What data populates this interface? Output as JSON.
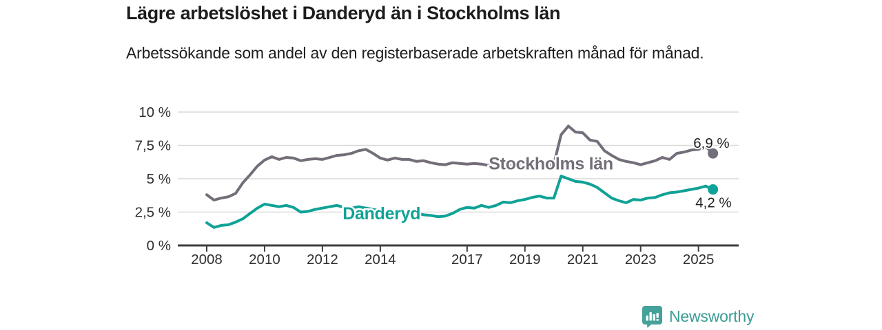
{
  "branding": {
    "label": "Newsworthy",
    "color": "#3b9c94",
    "icon": "newsworthy-speech-bubble-bar-chart-icon"
  },
  "chart_data": {
    "type": "line",
    "title": "Lägre arbetslöshet i Danderyd än i Stockholms län",
    "subtitle": "Arbetssökande som andel av den registerbaserade arbetskraften månad för månad.",
    "unit": "%",
    "grid": true,
    "legend_position": "inline-labels-on-lines",
    "x_axis": {
      "range": [
        2006.9,
        2026.4
      ],
      "ticks": [
        2008,
        2010,
        2012,
        2014,
        2017,
        2019,
        2021,
        2023,
        2025
      ]
    },
    "y_axis": {
      "range": [
        0,
        10
      ],
      "ticks": [
        {
          "value": 0,
          "label": "0 %"
        },
        {
          "value": 2.5,
          "label": "2,5 %"
        },
        {
          "value": 5,
          "label": "5 %"
        },
        {
          "value": 7.5,
          "label": "7,5 %"
        },
        {
          "value": 10,
          "label": "10 %"
        }
      ]
    },
    "x_start": 2008.0,
    "x_step": 0.25,
    "series": [
      {
        "name": "Stockholms län",
        "color": "#736e79",
        "end_value": 6.9,
        "end_label": "6,9 %",
        "label_anchor": {
          "x": 2017.75,
          "y": 5.7
        },
        "values": [
          3.8,
          3.4,
          3.55,
          3.65,
          3.9,
          4.7,
          5.3,
          5.95,
          6.4,
          6.65,
          6.45,
          6.6,
          6.55,
          6.35,
          6.45,
          6.5,
          6.45,
          6.6,
          6.75,
          6.8,
          6.9,
          7.1,
          7.2,
          6.9,
          6.55,
          6.4,
          6.55,
          6.45,
          6.45,
          6.3,
          6.35,
          6.2,
          6.1,
          6.05,
          6.2,
          6.15,
          6.1,
          6.15,
          6.1,
          6.0,
          6.05,
          6.1,
          6.05,
          6.1,
          6.05,
          6.0,
          6.05,
          6.0,
          6.1,
          8.3,
          8.95,
          8.5,
          8.45,
          7.9,
          7.8,
          7.1,
          6.75,
          6.45,
          6.3,
          6.2,
          6.05,
          6.2,
          6.35,
          6.6,
          6.45,
          6.9,
          7.0,
          7.15,
          7.2,
          7.4,
          6.9
        ]
      },
      {
        "name": "Danderyd",
        "color": "#10a296",
        "end_value": 4.2,
        "end_label": "4,2 %",
        "label_anchor": {
          "x": 2012.7,
          "y": 1.95
        },
        "values": [
          1.7,
          1.35,
          1.5,
          1.55,
          1.75,
          2.0,
          2.4,
          2.8,
          3.1,
          3.0,
          2.9,
          3.0,
          2.85,
          2.5,
          2.55,
          2.7,
          2.8,
          2.9,
          3.0,
          2.85,
          2.8,
          2.9,
          2.8,
          2.7,
          2.6,
          2.5,
          2.55,
          2.45,
          2.5,
          2.4,
          2.3,
          2.25,
          2.15,
          2.2,
          2.4,
          2.7,
          2.85,
          2.8,
          3.0,
          2.85,
          3.0,
          3.25,
          3.2,
          3.35,
          3.45,
          3.6,
          3.7,
          3.55,
          3.55,
          5.2,
          5.0,
          4.8,
          4.75,
          4.6,
          4.35,
          3.95,
          3.55,
          3.35,
          3.2,
          3.45,
          3.4,
          3.55,
          3.6,
          3.8,
          3.95,
          4.0,
          4.1,
          4.2,
          4.3,
          4.45,
          4.2
        ]
      }
    ]
  }
}
